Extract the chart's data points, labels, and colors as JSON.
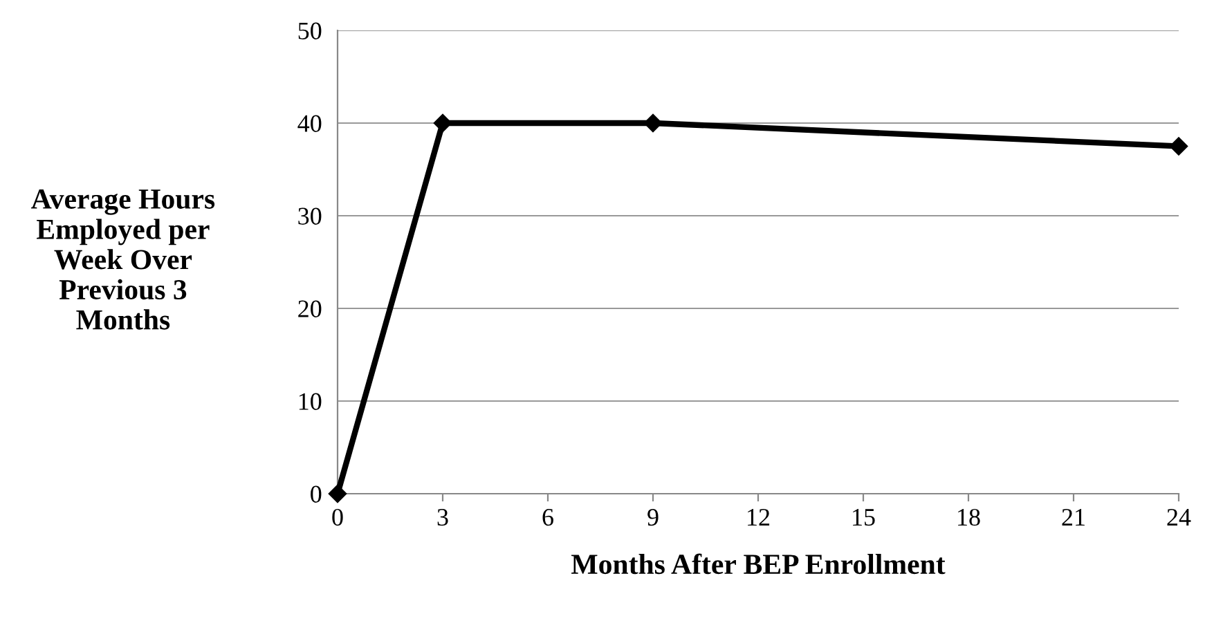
{
  "chart_data": {
    "type": "line",
    "xlabel": "Months After BEP Enrollment",
    "ylabel": "Average Hours\nEmployed per\nWeek Over\nPrevious 3\nMonths",
    "x": [
      0,
      3,
      9,
      24
    ],
    "series": [
      {
        "color": "#000000",
        "values": [
          0,
          40,
          40,
          37.5
        ]
      }
    ],
    "xlim": [
      0,
      24
    ],
    "xticks": [
      0,
      3,
      6,
      9,
      12,
      15,
      18,
      21,
      24
    ],
    "ylim": [
      0,
      50
    ],
    "yticks": [
      0,
      10,
      20,
      30,
      40,
      50
    ],
    "grid": "y",
    "marker": "diamond",
    "line_style": "solid"
  }
}
